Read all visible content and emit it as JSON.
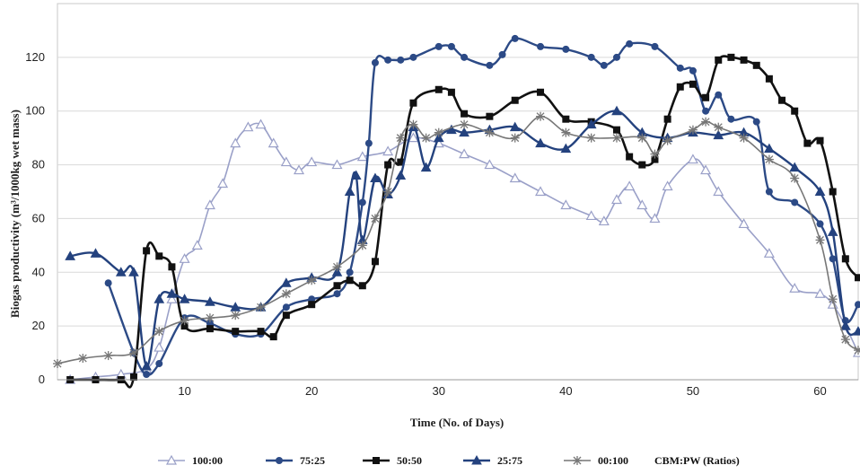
{
  "colors": {
    "100:00": "#9aa0c8",
    "75:25": "#2c4a86",
    "50:50": "#111111",
    "25:75": "#24427e",
    "00:100": "#777777",
    "grid": "#d9d9d9"
  },
  "legend": {
    "items": [
      "100:00",
      "75:25",
      "50:50",
      "25:75",
      "00:100"
    ],
    "suffix": "CBM:PW (Ratios)"
  },
  "chart_data": {
    "type": "line",
    "xlabel": "Time (No. of Days)",
    "ylabel": "Biogas productivity (m³/1000kg wet mass)",
    "xlim": [
      0,
      63
    ],
    "ylim": [
      0,
      140
    ],
    "xticks": [
      10,
      20,
      30,
      40,
      50,
      60
    ],
    "yticks": [
      0,
      20,
      40,
      60,
      80,
      100,
      120
    ],
    "grid": "horizontal",
    "legend_position": "bottom",
    "series": [
      {
        "name": "100:00",
        "marker": "open-triangle",
        "x": [
          1,
          3,
          5,
          7,
          8,
          9,
          10,
          11,
          12,
          13,
          14,
          15,
          16,
          17,
          18,
          19,
          20,
          22,
          24,
          26,
          28,
          30,
          32,
          34,
          36,
          38,
          40,
          42,
          43,
          44,
          45,
          46,
          47,
          48,
          50,
          51,
          52,
          54,
          56,
          58,
          60,
          61,
          62,
          63
        ],
        "y": [
          0,
          1,
          2,
          4,
          12,
          30,
          45,
          50,
          65,
          73,
          88,
          94,
          95,
          88,
          81,
          78,
          81,
          80,
          83,
          85,
          90,
          88,
          84,
          80,
          75,
          70,
          65,
          61,
          59,
          67,
          72,
          65,
          60,
          72,
          82,
          78,
          70,
          58,
          47,
          34,
          32,
          28,
          20,
          10
        ]
      },
      {
        "name": "75:25",
        "marker": "filled-circle",
        "x": [
          4,
          6,
          7,
          8,
          10,
          12,
          14,
          16,
          18,
          20,
          22,
          23,
          24,
          24.5,
          25,
          26,
          27,
          28,
          30,
          31,
          32,
          34,
          35,
          36,
          38,
          40,
          42,
          43,
          44,
          45,
          47,
          49,
          50,
          51,
          52,
          53,
          55,
          56,
          58,
          60,
          61,
          62,
          63
        ],
        "y": [
          36,
          10,
          2,
          6,
          23,
          21,
          17,
          17,
          27,
          30,
          32,
          40,
          66,
          88,
          118,
          119,
          119,
          120,
          124,
          124,
          120,
          117,
          121,
          127,
          124,
          123,
          120,
          117,
          120,
          125,
          124,
          116,
          115,
          100,
          106,
          97,
          96,
          70,
          66,
          58,
          45,
          22,
          28
        ]
      },
      {
        "name": "50:50",
        "marker": "filled-square",
        "x": [
          1,
          3,
          5,
          6,
          7,
          8,
          9,
          10,
          12,
          14,
          16,
          17,
          18,
          20,
          22,
          23,
          24,
          25,
          26,
          27,
          28,
          30,
          31,
          32,
          34,
          36,
          38,
          40,
          42,
          44,
          45,
          46,
          47,
          48,
          49,
          50,
          51,
          52,
          53,
          54,
          55,
          56,
          57,
          58,
          59,
          60,
          61,
          62,
          63
        ],
        "y": [
          0,
          0,
          0,
          1,
          48,
          46,
          42,
          20,
          19,
          18,
          18,
          16,
          24,
          28,
          35,
          37,
          35,
          44,
          80,
          81,
          103,
          108,
          107,
          99,
          98,
          104,
          107,
          97,
          96,
          93,
          83,
          80,
          82,
          97,
          109,
          110,
          105,
          119,
          120,
          119,
          117,
          112,
          104,
          100,
          88,
          89,
          70,
          45,
          38
        ]
      },
      {
        "name": "25:75",
        "marker": "filled-triangle",
        "x": [
          1,
          3,
          5,
          6,
          7,
          8,
          9,
          10,
          12,
          14,
          16,
          18,
          20,
          22,
          23,
          23.5,
          24,
          25,
          26,
          27,
          28,
          29,
          30,
          31,
          32,
          34,
          36,
          38,
          40,
          42,
          44,
          46,
          48,
          50,
          52,
          54,
          56,
          58,
          60,
          61,
          62,
          63
        ],
        "y": [
          46,
          47,
          40,
          40,
          5,
          30,
          32,
          30,
          29,
          27,
          27,
          36,
          38,
          40,
          70,
          76,
          52,
          75,
          69,
          76,
          94,
          79,
          90,
          93,
          92,
          93,
          94,
          88,
          86,
          95,
          100,
          92,
          90,
          92,
          91,
          92,
          86,
          79,
          70,
          55,
          20,
          18
        ]
      },
      {
        "name": "00:100",
        "marker": "asterisk",
        "x": [
          0,
          2,
          4,
          6,
          8,
          10,
          12,
          14,
          16,
          18,
          20,
          22,
          24,
          25,
          26,
          27,
          28,
          29,
          30,
          32,
          34,
          36,
          38,
          40,
          42,
          44,
          46,
          47,
          48,
          50,
          51,
          52,
          54,
          56,
          58,
          60,
          61,
          62,
          63
        ],
        "y": [
          6,
          8,
          9,
          10,
          18,
          22,
          23,
          24,
          27,
          32,
          37,
          42,
          50,
          60,
          70,
          90,
          95,
          90,
          92,
          95,
          92,
          90,
          98,
          92,
          90,
          90,
          90,
          84,
          89,
          93,
          96,
          94,
          90,
          82,
          75,
          52,
          30,
          15,
          11
        ]
      }
    ]
  }
}
